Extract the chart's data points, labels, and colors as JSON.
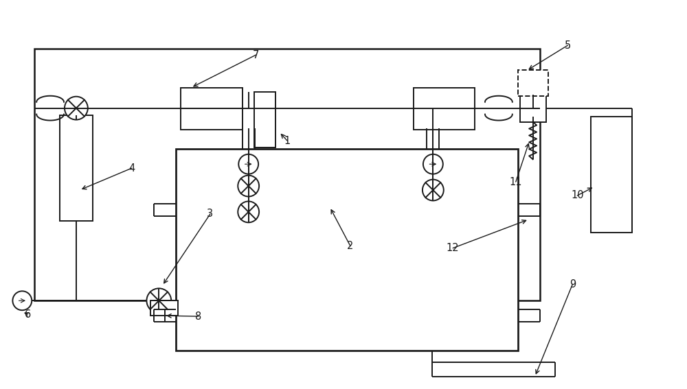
{
  "bg_color": "#ffffff",
  "lc": "#1a1a1a",
  "lw": 1.4,
  "fig_w": 10.0,
  "fig_h": 5.67,
  "xlim": [
    0,
    10
  ],
  "ylim": [
    0,
    5.67
  ]
}
